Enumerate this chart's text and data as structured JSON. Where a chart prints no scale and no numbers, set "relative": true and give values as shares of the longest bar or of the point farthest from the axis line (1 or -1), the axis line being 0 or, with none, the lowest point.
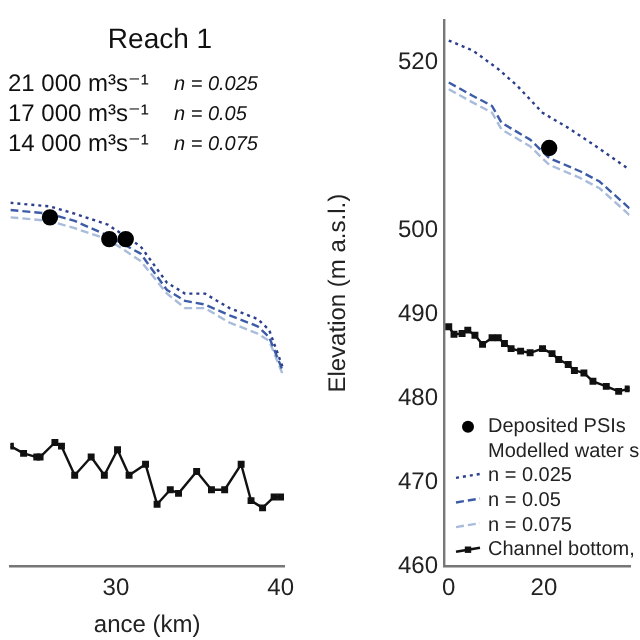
{
  "chart_data": [
    {
      "type": "line",
      "title": "Reach 1",
      "xlabel": "ance (km)",
      "relative": true,
      "tick_labels": "x",
      "legend": false,
      "xlim": [
        23.6,
        40.2
      ],
      "xticks": [
        30,
        40
      ],
      "annotations": [
        "21 000 m³s⁻¹",
        "n = 0.025",
        "17 000 m³s⁻¹",
        "n = 0.05",
        "14 000 m³s⁻¹",
        "n = 0.075"
      ],
      "series": [
        {
          "color": "#2b3f8c",
          "line_style": "dotted",
          "marker": "none",
          "x": [
            23.6,
            26.0,
            27.5,
            29.5,
            31.5,
            33.1,
            34.2,
            35.4,
            36.9,
            38.6,
            39.3,
            40.1
          ],
          "values": [
            1.0,
            0.99,
            0.97,
            0.94,
            0.88,
            0.78,
            0.75,
            0.75,
            0.71,
            0.68,
            0.65,
            0.55
          ]
        },
        {
          "color": "#3d5ca8",
          "line_style": "dashed",
          "marker": "none",
          "x": [
            23.6,
            26.0,
            27.5,
            29.5,
            31.5,
            33.1,
            34.2,
            35.4,
            36.9,
            38.6,
            39.3,
            40.1
          ],
          "values": [
            0.98,
            0.97,
            0.95,
            0.91,
            0.86,
            0.76,
            0.73,
            0.72,
            0.69,
            0.66,
            0.63,
            0.54
          ]
        },
        {
          "color": "#a9bcdc",
          "line_style": "dashed",
          "marker": "none",
          "x": [
            23.6,
            26.0,
            27.5,
            29.5,
            31.5,
            33.1,
            34.2,
            35.4,
            36.9,
            38.6,
            39.3,
            40.1
          ],
          "values": [
            0.96,
            0.95,
            0.93,
            0.9,
            0.84,
            0.75,
            0.71,
            0.71,
            0.67,
            0.64,
            0.62,
            0.53
          ]
        },
        {
          "color": "#111111",
          "line_style": "solid",
          "marker": "square",
          "x": [
            23.6,
            24.4,
            25.2,
            25.4,
            26.3,
            26.7,
            27.5,
            28.5,
            29.3,
            30.1,
            30.8,
            31.8,
            32.5,
            33.3,
            33.8,
            34.9,
            35.8,
            36.6,
            37.6,
            38.2,
            38.9,
            39.6,
            40.0
          ],
          "values": [
            0.33,
            0.31,
            0.3,
            0.3,
            0.34,
            0.33,
            0.25,
            0.3,
            0.25,
            0.32,
            0.25,
            0.28,
            0.17,
            0.21,
            0.2,
            0.26,
            0.21,
            0.21,
            0.28,
            0.18,
            0.16,
            0.19,
            0.19
          ]
        },
        {
          "type": "scatter",
          "color": "#000000",
          "marker": "circle",
          "x": [
            26.0,
            29.6,
            30.6
          ],
          "values": [
            0.96,
            0.9,
            0.9
          ]
        }
      ]
    },
    {
      "type": "line",
      "ylabel": "Elevation (m a.s.l.)",
      "legend": "bottom left",
      "legend_title": "Modelled water s",
      "xlim": [
        -1,
        38
      ],
      "xticks": [
        0,
        20
      ],
      "ylim": [
        460,
        525
      ],
      "yticks": [
        460,
        470,
        480,
        490,
        500,
        520
      ],
      "series": [
        {
          "type": "scatter",
          "name": "Deposited PSIs",
          "color": "#000000",
          "marker": "circle",
          "x": [
            21.1
          ],
          "values": [
            509.8
          ]
        },
        {
          "name": "n = 0.025",
          "color": "#2b3f8c",
          "line_style": "dotted",
          "marker": "none",
          "x": [
            0,
            5.1,
            10.4,
            14.4,
            19.7,
            25.1,
            30.4,
            38
          ],
          "values": [
            522.6,
            521.4,
            519.2,
            517.2,
            514.0,
            512.2,
            510.2,
            507.2
          ]
        },
        {
          "name": "n = 0.05",
          "color": "#3d5ca8",
          "line_style": "dashed",
          "marker": "none",
          "x": [
            0,
            5.1,
            9.1,
            11.1,
            17.1,
            21.1,
            27.7,
            31.7,
            38
          ],
          "values": [
            517.6,
            516.0,
            514.8,
            512.8,
            510.8,
            508.6,
            507.0,
            505.8,
            502.6
          ]
        },
        {
          "name": "n = 0.075",
          "color": "#a9bcdc",
          "line_style": "dashed",
          "marker": "none",
          "x": [
            0,
            5.1,
            9.1,
            11.1,
            17.1,
            21.1,
            27.7,
            31.7,
            38
          ],
          "values": [
            516.8,
            515.2,
            514.0,
            512.0,
            510.0,
            507.8,
            506.2,
            505.0,
            501.8
          ]
        },
        {
          "name": "Channel bottom,",
          "color": "#111111",
          "line_style": "solid",
          "marker": "square",
          "x": [
            0,
            1.1,
            2.8,
            4.0,
            5.5,
            7.1,
            9.1,
            10.4,
            11.7,
            13.1,
            15.1,
            17.1,
            19.7,
            21.7,
            23.1,
            25.1,
            26.4,
            28.4,
            30.3,
            33.1,
            35.7,
            37.7
          ],
          "values": [
            488.5,
            487.6,
            487.7,
            488.1,
            487.5,
            486.4,
            487.2,
            487.2,
            486.5,
            485.9,
            485.6,
            485.4,
            485.9,
            485.3,
            484.6,
            484.0,
            483.3,
            483.0,
            482.0,
            481.4,
            480.8,
            481.1
          ]
        }
      ]
    }
  ]
}
